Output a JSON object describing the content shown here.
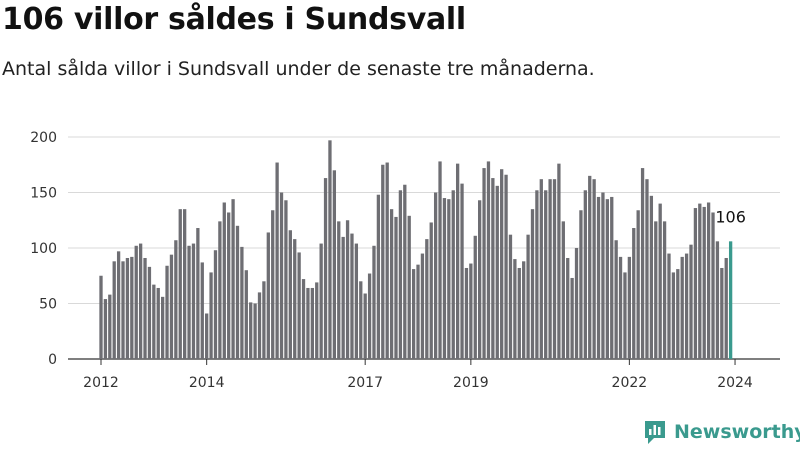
{
  "header": {
    "title": "106 villor såldes i Sundsvall",
    "subtitle": "Antal sålda villor i Sundsvall under de senaste tre månaderna."
  },
  "brand": {
    "name": "Newsworthy",
    "color": "#3a9a8e"
  },
  "colors": {
    "bar": "#6e6e73",
    "highlight": "#3a9a8e",
    "grid": "#d9d9d9"
  },
  "chart_data": {
    "type": "bar",
    "title": "106 villor såldes i Sundsvall",
    "subtitle": "Antal sålda villor i Sundsvall under de senaste tre månaderna.",
    "xlabel": "",
    "ylabel": "",
    "ylim": [
      0,
      200
    ],
    "yticks": [
      0,
      50,
      100,
      150,
      200
    ],
    "xticks": [
      {
        "label": "2012",
        "index": 0
      },
      {
        "label": "2014",
        "index": 24
      },
      {
        "label": "2017",
        "index": 60
      },
      {
        "label": "2019",
        "index": 84
      },
      {
        "label": "2022",
        "index": 120
      },
      {
        "label": "2024",
        "index": 144
      }
    ],
    "grid": true,
    "legend": "none",
    "period": "rolling 3-month sales, monthly from Jan 2012 to Jan 2024",
    "values": [
      75,
      54,
      58,
      88,
      97,
      88,
      91,
      92,
      102,
      104,
      91,
      83,
      67,
      64,
      56,
      84,
      94,
      107,
      135,
      135,
      102,
      104,
      118,
      87,
      41,
      78,
      98,
      124,
      141,
      132,
      144,
      120,
      101,
      80,
      51,
      50,
      60,
      70,
      114,
      134,
      177,
      150,
      143,
      116,
      108,
      96,
      72,
      64,
      64,
      69,
      104,
      163,
      197,
      170,
      124,
      110,
      125,
      113,
      104,
      70,
      59,
      77,
      102,
      148,
      175,
      177,
      135,
      128,
      152,
      157,
      129,
      81,
      85,
      95,
      108,
      123,
      150,
      178,
      145,
      144,
      152,
      176,
      158,
      82,
      86,
      111,
      143,
      172,
      178,
      163,
      156,
      171,
      166,
      112,
      90,
      82,
      88,
      112,
      135,
      152,
      162,
      152,
      162,
      162,
      176,
      124,
      91,
      73,
      100,
      134,
      152,
      165,
      162,
      146,
      150,
      144,
      146,
      107,
      92,
      78,
      92,
      118,
      134,
      172,
      162,
      147,
      124,
      140,
      124,
      95,
      78,
      81,
      92,
      95,
      103,
      136,
      140,
      137,
      141,
      132,
      106,
      82,
      91,
      106
    ],
    "highlight_index": 143,
    "annotation": {
      "text": "106",
      "index": 143
    }
  }
}
